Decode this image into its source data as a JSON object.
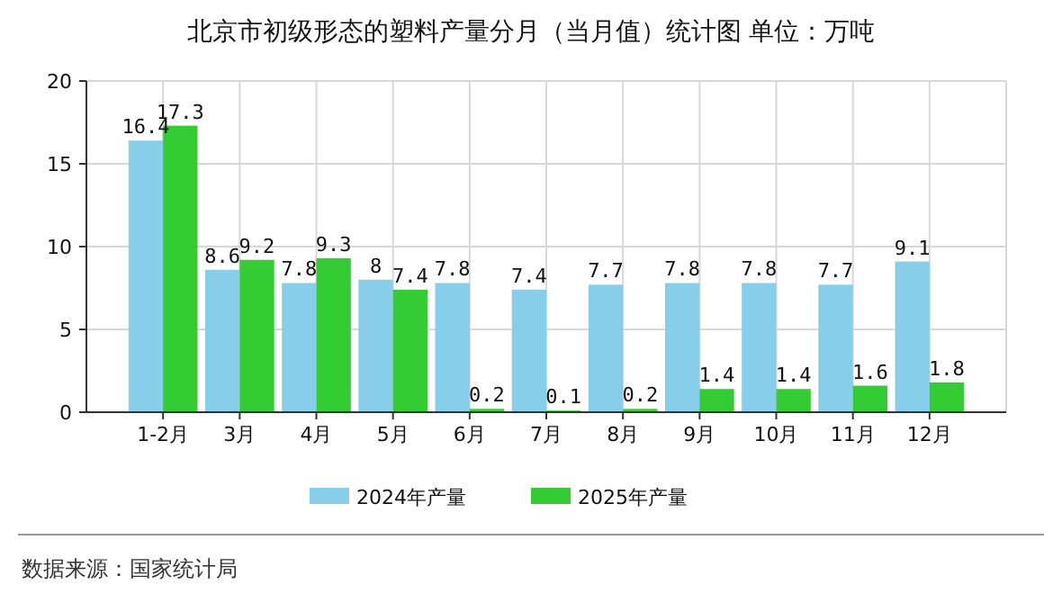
{
  "chart_data": {
    "type": "bar",
    "title": "北京市初级形态的塑料产量分月（当月值）统计图 单位：万吨",
    "categories": [
      "1-2月",
      "3月",
      "4月",
      "5月",
      "6月",
      "7月",
      "8月",
      "9月",
      "10月",
      "11月",
      "12月"
    ],
    "series": [
      {
        "name": "2024年产量",
        "color": "#87ceeb",
        "values": [
          16.4,
          8.6,
          7.8,
          8,
          7.8,
          7.4,
          7.7,
          7.8,
          7.8,
          7.7,
          9.1
        ]
      },
      {
        "name": "2025年产量",
        "color": "#33cc33",
        "values": [
          17.3,
          9.2,
          9.3,
          7.4,
          0.2,
          0.1,
          0.2,
          1.4,
          1.4,
          1.6,
          1.8
        ]
      }
    ],
    "ylim": [
      0,
      20
    ],
    "yticks": [
      0,
      5,
      10,
      15,
      20
    ],
    "grid": true,
    "legend": "bottom",
    "data_labels": true,
    "annotations": [
      "数据来源：国家统计局"
    ]
  }
}
